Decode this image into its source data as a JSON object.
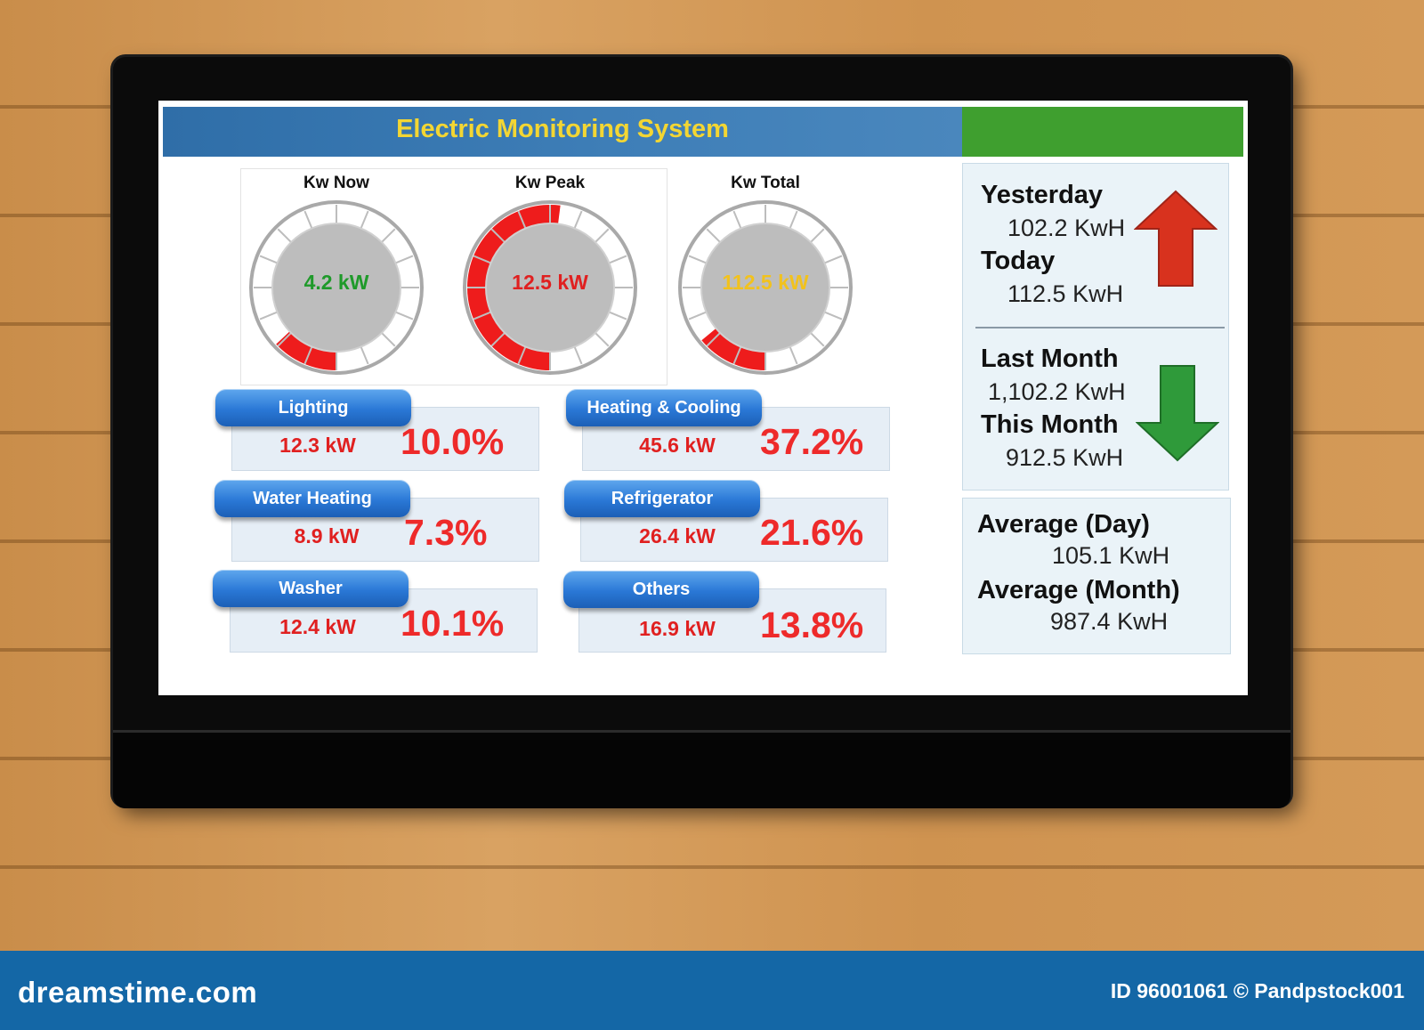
{
  "header": {
    "title": "Electric Monitoring System"
  },
  "gauges": [
    {
      "label": "Kw Now",
      "value": "4.2 kW",
      "value_color": "#1f9a2a",
      "fill_fraction": 0.13
    },
    {
      "label": "Kw Peak",
      "value": "12.5 kW",
      "value_color": "#e02020",
      "fill_fraction": 0.52
    },
    {
      "label": "Kw Total",
      "value": "112.5 kW",
      "value_color": "#f2c21d",
      "fill_fraction": 0.14
    }
  ],
  "categories": [
    {
      "name": "Lighting",
      "kw": "12.3 kW",
      "percent": "10.0%"
    },
    {
      "name": "Heating & Cooling",
      "kw": "45.6 kW",
      "percent": "37.2%"
    },
    {
      "name": "Water Heating",
      "kw": "8.9 kW",
      "percent": "7.3%"
    },
    {
      "name": "Refrigerator",
      "kw": "26.4 kW",
      "percent": "21.6%"
    },
    {
      "name": "Washer",
      "kw": "12.4 kW",
      "percent": "10.1%"
    },
    {
      "name": "Others",
      "kw": "16.9 kW",
      "percent": "13.8%"
    }
  ],
  "daily": {
    "yesterday_label": "Yesterday",
    "yesterday_value": "102.2 KwH",
    "today_label": "Today",
    "today_value": "112.5 KwH",
    "trend_icon": "arrow-up-icon",
    "trend_color": "#d8321e"
  },
  "monthly": {
    "last_month_label": "Last Month",
    "last_month_value": "1,102.2 KwH",
    "this_month_label": "This Month",
    "this_month_value": "912.5 KwH",
    "trend_icon": "arrow-down-icon",
    "trend_color": "#2f9a3a"
  },
  "averages": {
    "day_label": "Average (Day)",
    "day_value": "105.1 KwH",
    "month_label": "Average (Month)",
    "month_value": "987.4 KwH"
  },
  "footer": {
    "logo": "dreamstime.com",
    "id_text": "ID 96001061 © Pandpstock001"
  }
}
